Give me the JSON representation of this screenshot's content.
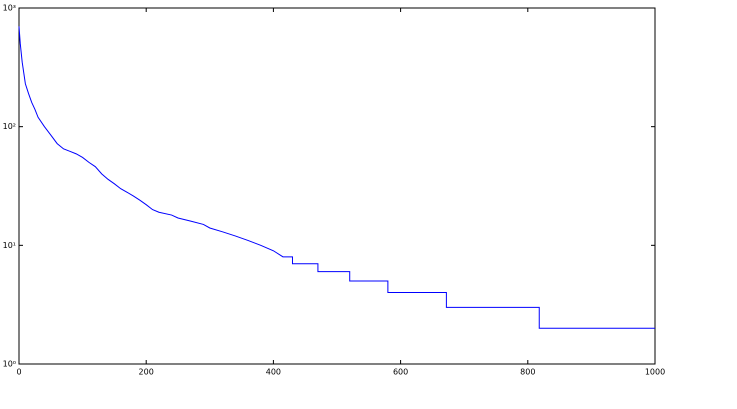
{
  "chart_data": {
    "type": "line",
    "log_y": true,
    "color": "#0000ff",
    "x": [
      0,
      2,
      5,
      10,
      15,
      20,
      25,
      30,
      40,
      50,
      60,
      70,
      80,
      90,
      100,
      110,
      120,
      130,
      140,
      150,
      160,
      170,
      180,
      190,
      200,
      210,
      220,
      240,
      250,
      270,
      290,
      300,
      320,
      340,
      360,
      380,
      400,
      415,
      430,
      430,
      470,
      470,
      520,
      520,
      580,
      580,
      672,
      672,
      818,
      818,
      1000
    ],
    "values": [
      700,
      500,
      350,
      230,
      190,
      160,
      140,
      120,
      100,
      85,
      72,
      65,
      62,
      59,
      55,
      50,
      46,
      40,
      36,
      33,
      30,
      28,
      26,
      24,
      22,
      20,
      19,
      18,
      17,
      16,
      15,
      14,
      13,
      12,
      11,
      10,
      9,
      8,
      8,
      7,
      7,
      6,
      6,
      5,
      5,
      4,
      4,
      3,
      3,
      2,
      2
    ],
    "xlim": [
      0,
      1000
    ],
    "xticks": [
      0,
      200,
      400,
      600,
      800,
      1000
    ],
    "ylim": [
      1,
      1000
    ],
    "yticks": [
      {
        "value": 1,
        "label": "10⁰"
      },
      {
        "value": 10,
        "label": "10¹"
      },
      {
        "value": 100,
        "label": "10²"
      },
      {
        "value": 1000,
        "label": "10³"
      }
    ]
  }
}
